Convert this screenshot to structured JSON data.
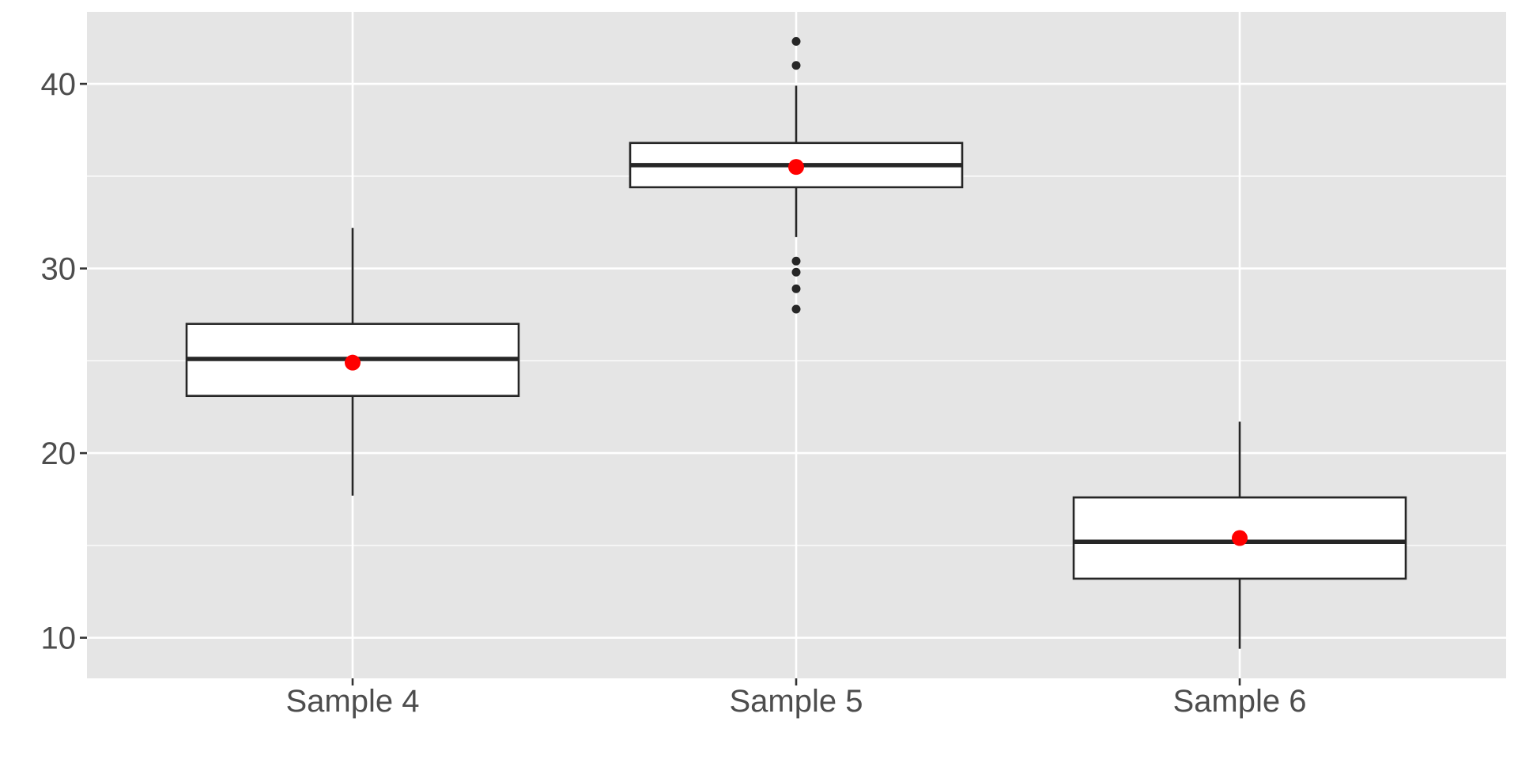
{
  "chart_data": {
    "type": "box",
    "categories": [
      "Sample 4",
      "Sample 5",
      "Sample 6"
    ],
    "y_ticks": [
      10,
      20,
      30,
      40
    ],
    "y_tick_labels": [
      "10",
      "20",
      "30",
      "40"
    ],
    "ylim": [
      7.8,
      43.9
    ],
    "grid": true,
    "title": "",
    "xlabel": "",
    "ylabel": "",
    "boxes": [
      {
        "category": "Sample 4",
        "whisker_low": 17.7,
        "q1": 23.1,
        "median": 25.1,
        "q3": 27.0,
        "whisker_high": 32.2,
        "mean": 24.9,
        "outliers": []
      },
      {
        "category": "Sample 5",
        "whisker_low": 31.7,
        "q1": 34.4,
        "median": 35.6,
        "q3": 36.8,
        "whisker_high": 39.9,
        "mean": 35.5,
        "outliers": [
          42.3,
          41.0,
          30.4,
          29.8,
          28.9,
          27.8
        ]
      },
      {
        "category": "Sample 6",
        "whisker_low": 9.4,
        "q1": 13.2,
        "median": 15.2,
        "q3": 17.6,
        "whisker_high": 21.7,
        "mean": 15.4,
        "outliers": []
      }
    ],
    "colors": {
      "panel_background": "#e5e5e5",
      "grid": "#ffffff",
      "box_fill": "#ffffff",
      "box_stroke": "#262626",
      "mean_point": "#ff0000",
      "outlier_point": "#262626"
    }
  }
}
